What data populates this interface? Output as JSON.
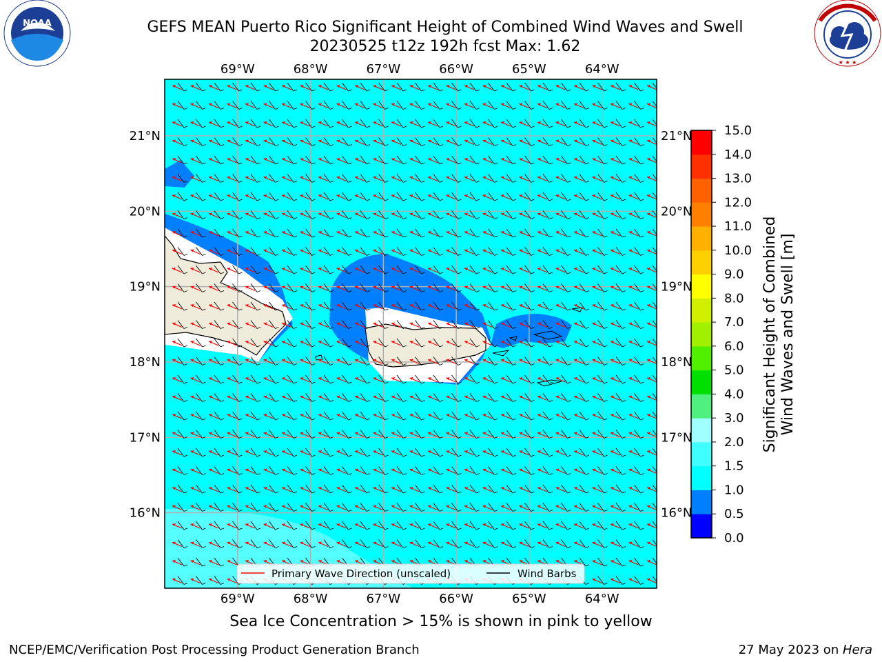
{
  "header": {
    "title_line1": "GEFS MEAN Puerto Rico Significant Height of Combined Wind Waves and Swell",
    "title_line2": "20230525 t12z 192h fcst   Max: 1.62"
  },
  "logos": {
    "left": {
      "name": "noaa-logo",
      "text": "NOAA",
      "ring_text": "NATIONAL OCEANIC AND ATMOSPHERIC ADMINISTRATION · U.S. DEPARTMENT OF COMMERCE"
    },
    "right": {
      "name": "nws-logo",
      "ring_text": "NATIONAL WEATHER SERVICE"
    }
  },
  "map": {
    "lon_range": [
      -70.0,
      -63.25
    ],
    "lat_range": [
      15.0,
      21.75
    ],
    "lon_ticks": [
      "69°W",
      "68°W",
      "67°W",
      "66°W",
      "65°W",
      "64°W"
    ],
    "lat_ticks": [
      "21°N",
      "20°N",
      "19°N",
      "18°N",
      "17°N",
      "16°N"
    ],
    "ocean_color": "#00ffff",
    "land_color": "#efecdc",
    "grid": true
  },
  "legend": {
    "wave_label": "Primary Wave Direction (unscaled)",
    "barb_label": "Wind Barbs",
    "wave_color": "#ff0000",
    "barb_color": "#000000"
  },
  "colorbar": {
    "label_line1": "Significant Height of Combined",
    "label_line2": "Wind Waves and Swell [m]",
    "ticks": [
      "0.0",
      "0.5",
      "1.0",
      "1.5",
      "2.0",
      "3.0",
      "4.0",
      "5.0",
      "6.0",
      "7.0",
      "8.0",
      "9.0",
      "10.0",
      "11.0",
      "12.0",
      "13.0",
      "14.0",
      "15.0"
    ],
    "colors": [
      "#0000ff",
      "#0080ff",
      "#00ffff",
      "#40ffff",
      "#a0ffff",
      "#50f080",
      "#00e000",
      "#50f000",
      "#a0f000",
      "#d0f000",
      "#ffff00",
      "#ffd000",
      "#ffb000",
      "#ff8000",
      "#ff6000",
      "#ff3000",
      "#ff0000"
    ]
  },
  "notes": {
    "sea_ice": "Sea Ice Concentration > 15% is shown in pink to yellow"
  },
  "footer": {
    "left": "NCEP/EMC/Verification Post Processing Product Generation Branch",
    "date": "27 May 2023 on ",
    "host": "Hera"
  }
}
